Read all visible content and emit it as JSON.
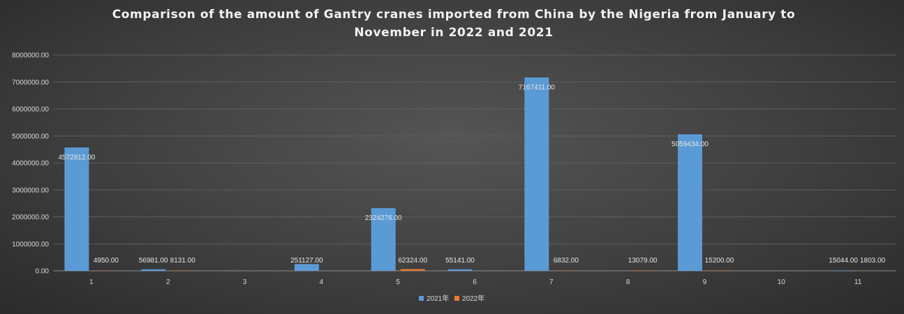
{
  "chart_data": {
    "type": "bar",
    "title": "Comparison of the amount of Gantry cranes imported from China by the Nigeria from January to November in 2022 and 2021",
    "categories": [
      "1",
      "2",
      "3",
      "4",
      "5",
      "6",
      "7",
      "8",
      "9",
      "10",
      "11"
    ],
    "series": [
      {
        "name": "2021年",
        "color": "#5b9bd5",
        "values": [
          4572812.0,
          56981.0,
          null,
          251127.0,
          2324276.0,
          55141.0,
          7167411.0,
          null,
          5059434.0,
          null,
          15044.0
        ],
        "labels": [
          "4572812.00",
          "56981.00",
          "",
          "251127.00",
          "2324276.00",
          "55141.00",
          "7167411.00",
          "",
          "5059434.00",
          "",
          "15044.00"
        ]
      },
      {
        "name": "2022年",
        "color": "#ed7d31",
        "values": [
          4950.0,
          8131.0,
          null,
          null,
          62324.0,
          null,
          6832.0,
          13079.0,
          15200.0,
          null,
          1803.0
        ],
        "labels": [
          "4950.00",
          "8131.00",
          "",
          "",
          "62324.00",
          "",
          "6832.00",
          "13079.00",
          "15200.00",
          "",
          "1803.00"
        ]
      }
    ],
    "y_ticks": [
      "0.00",
      "1000000.00",
      "2000000.00",
      "3000000.00",
      "4000000.00",
      "5000000.00",
      "6000000.00",
      "7000000.00",
      "8000000.00"
    ],
    "ylim": [
      0,
      8000000
    ],
    "xlabel": "",
    "ylabel": "",
    "grid": true,
    "legend_position": "bottom"
  }
}
